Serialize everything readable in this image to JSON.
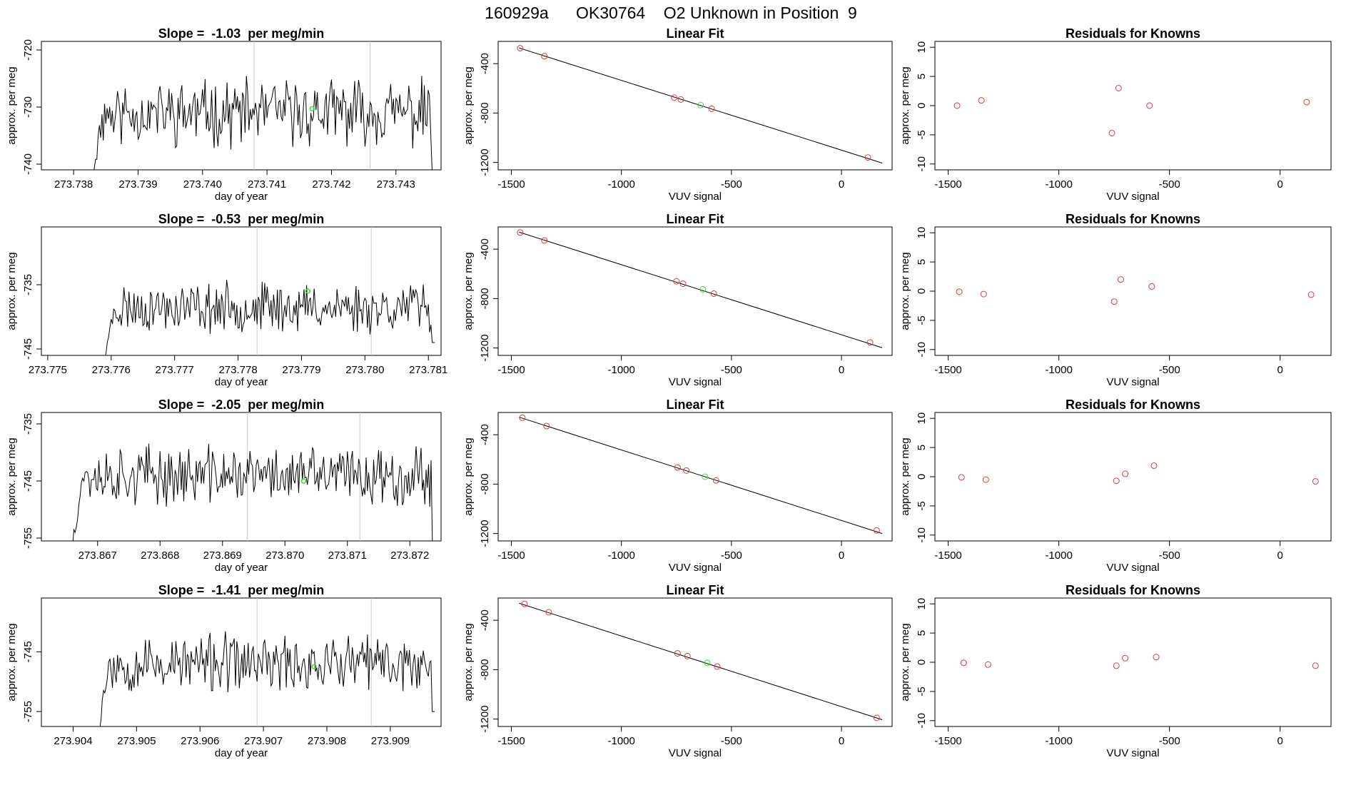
{
  "page_title": "160929a      OK30764    O2 Unknown in Position  9",
  "chart_data": [
    {
      "type": "line",
      "row": 0,
      "panel": "timeseries",
      "title": "Slope =  -1.03  per meg/min",
      "xlabel": "day of year",
      "ylabel": "approx. per meg",
      "xlim": [
        273.7375,
        273.7437
      ],
      "ylim": [
        -741,
        -718.5
      ],
      "xticks": [
        273.738,
        273.739,
        273.74,
        273.741,
        273.742,
        273.743
      ],
      "xtick_labels": [
        "273.738",
        "273.739",
        "273.740",
        "273.741",
        "273.742",
        "273.743"
      ],
      "yticks": [
        -740,
        -730,
        -720
      ],
      "ytick_labels": [
        "-740",
        "-730",
        "-720"
      ],
      "vlines": [
        273.7408,
        273.7426
      ],
      "series_start": 273.7383,
      "series_end": 273.7436,
      "series_step": 2e-05,
      "series_start_value": -741,
      "series_end_value": -741,
      "series_mean": -731,
      "series_amplitude": 4.5,
      "series_seed": 11,
      "highlight": {
        "x": 273.7417,
        "y": -730.3,
        "color": "#33dd33"
      }
    },
    {
      "type": "scatter",
      "row": 0,
      "panel": "fit",
      "title": "Linear Fit",
      "xlabel": "VUV signal",
      "ylabel": "approx. per meg",
      "xlim": [
        -1560,
        230
      ],
      "ylim": [
        -1260,
        -220
      ],
      "xticks": [
        -1500,
        -1000,
        -500,
        0
      ],
      "xtick_labels": [
        "-1500",
        "-1000",
        "-500",
        "0"
      ],
      "yticks": [
        -1200,
        -800,
        -400
      ],
      "ytick_labels": [
        "-1200",
        "-800",
        "-400"
      ],
      "line": {
        "x1": -1465,
        "y1": -273,
        "x2": 185,
        "y2": -1205
      },
      "knowns": [
        {
          "x": -1460,
          "y": -275
        },
        {
          "x": -1350,
          "y": -340
        },
        {
          "x": -760,
          "y": -675
        },
        {
          "x": -730,
          "y": -690
        },
        {
          "x": -590,
          "y": -765
        },
        {
          "x": 120,
          "y": -1160
        }
      ],
      "unknown": {
        "x": -640,
        "y": -735,
        "color": "#33dd33"
      }
    },
    {
      "type": "scatter",
      "row": 0,
      "panel": "residuals",
      "title": "Residuals for Knowns",
      "xlabel": "VUV signal",
      "ylabel": "approx. per meg",
      "xlim": [
        -1560,
        230
      ],
      "ylim": [
        -11,
        11
      ],
      "xticks": [
        -1500,
        -1000,
        -500,
        0
      ],
      "xtick_labels": [
        "-1500",
        "-1000",
        "-500",
        "0"
      ],
      "yticks": [
        -10,
        -5,
        0,
        5,
        10
      ],
      "ytick_labels": [
        "-10",
        "-5",
        "0",
        "5",
        "10"
      ],
      "points": [
        {
          "x": -1460,
          "y": 0
        },
        {
          "x": -1350,
          "y": 0.9
        },
        {
          "x": -760,
          "y": -4.7
        },
        {
          "x": -730,
          "y": 3
        },
        {
          "x": -590,
          "y": 0
        },
        {
          "x": 120,
          "y": 0.6
        }
      ]
    },
    {
      "type": "line",
      "row": 1,
      "panel": "timeseries",
      "title": "Slope =  -0.53  per meg/min",
      "xlabel": "day of year",
      "ylabel": "approx. per meg",
      "xlim": [
        273.7749,
        273.7812
      ],
      "ylim": [
        -746,
        -726
      ],
      "xticks": [
        273.775,
        273.776,
        273.777,
        273.778,
        273.779,
        273.78,
        273.781
      ],
      "xtick_labels": [
        "273.775",
        "273.776",
        "273.777",
        "273.778",
        "273.779",
        "273.780",
        "273.781"
      ],
      "yticks": [
        -745,
        -735
      ],
      "ytick_labels": [
        "-745",
        "-735"
      ],
      "vlines": [
        273.7783,
        273.7801
      ],
      "series_start": 273.7759,
      "series_end": 273.7811,
      "series_step": 2e-05,
      "series_start_value": -746,
      "series_end_value": -744,
      "series_mean": -738.5,
      "series_amplitude": 3,
      "series_seed": 23,
      "highlight": {
        "x": 273.7791,
        "y": -736,
        "color": "#33dd33"
      }
    },
    {
      "type": "scatter",
      "row": 1,
      "panel": "fit",
      "title": "Linear Fit",
      "xlabel": "VUV signal",
      "ylabel": "approx. per meg",
      "xlim": [
        -1560,
        230
      ],
      "ylim": [
        -1260,
        -220
      ],
      "xticks": [
        -1500,
        -1000,
        -500,
        0
      ],
      "xtick_labels": [
        "-1500",
        "-1000",
        "-500",
        "0"
      ],
      "yticks": [
        -1200,
        -800,
        -400
      ],
      "ytick_labels": [
        "-1200",
        "-800",
        "-400"
      ],
      "line": {
        "x1": -1465,
        "y1": -262,
        "x2": 185,
        "y2": -1198
      },
      "knowns": [
        {
          "x": -1460,
          "y": -265
        },
        {
          "x": -1350,
          "y": -330
        },
        {
          "x": -750,
          "y": -660
        },
        {
          "x": -720,
          "y": -680
        },
        {
          "x": -580,
          "y": -760
        },
        {
          "x": 130,
          "y": -1155
        }
      ],
      "unknown": {
        "x": -630,
        "y": -725,
        "color": "#33dd33"
      }
    },
    {
      "type": "scatter",
      "row": 1,
      "panel": "residuals",
      "title": "Residuals for Knowns",
      "xlabel": "VUV signal",
      "ylabel": "approx. per meg",
      "xlim": [
        -1560,
        230
      ],
      "ylim": [
        -11,
        11
      ],
      "xticks": [
        -1500,
        -1000,
        -500,
        0
      ],
      "xtick_labels": [
        "-1500",
        "-1000",
        "-500",
        "0"
      ],
      "yticks": [
        -10,
        -5,
        0,
        5,
        10
      ],
      "ytick_labels": [
        "-10",
        "-5",
        "0",
        "5",
        "10"
      ],
      "points": [
        {
          "x": -1450,
          "y": -0.1
        },
        {
          "x": -1340,
          "y": -0.5
        },
        {
          "x": -750,
          "y": -1.8
        },
        {
          "x": -720,
          "y": 2
        },
        {
          "x": -580,
          "y": 0.8
        },
        {
          "x": 140,
          "y": -0.6
        }
      ]
    },
    {
      "type": "line",
      "row": 2,
      "panel": "timeseries",
      "title": "Slope =  -2.05  per meg/min",
      "xlabel": "day of year",
      "ylabel": "approx. per meg",
      "xlim": [
        273.8661,
        273.8725
      ],
      "ylim": [
        -755.5,
        -733
      ],
      "xticks": [
        273.867,
        273.868,
        273.869,
        273.87,
        273.871,
        273.872
      ],
      "xtick_labels": [
        "273.867",
        "273.868",
        "273.869",
        "273.870",
        "273.871",
        "273.872"
      ],
      "yticks": [
        -755,
        -745,
        -735
      ],
      "ytick_labels": [
        "-755",
        "-745",
        "-735"
      ],
      "vlines": [
        273.8694,
        273.8712
      ],
      "series_start": 273.8666,
      "series_end": 273.8724,
      "series_step": 2e-05,
      "series_start_value": -755.5,
      "series_end_value": -755.5,
      "series_mean": -744,
      "series_amplitude": 4,
      "series_seed": 37,
      "highlight": {
        "x": 273.8703,
        "y": -745,
        "color": "#33dd33"
      }
    },
    {
      "type": "scatter",
      "row": 2,
      "panel": "fit",
      "title": "Linear Fit",
      "xlabel": "VUV signal",
      "ylabel": "approx. per meg",
      "xlim": [
        -1560,
        230
      ],
      "ylim": [
        -1260,
        -220
      ],
      "xticks": [
        -1500,
        -1000,
        -500,
        0
      ],
      "xtick_labels": [
        "-1500",
        "-1000",
        "-500",
        "0"
      ],
      "yticks": [
        -1200,
        -800,
        -400
      ],
      "ytick_labels": [
        "-1200",
        "-800",
        "-400"
      ],
      "line": {
        "x1": -1465,
        "y1": -258,
        "x2": 185,
        "y2": -1200
      },
      "knowns": [
        {
          "x": -1450,
          "y": -262
        },
        {
          "x": -1340,
          "y": -330
        },
        {
          "x": -745,
          "y": -665
        },
        {
          "x": -705,
          "y": -690
        },
        {
          "x": -570,
          "y": -770
        },
        {
          "x": 160,
          "y": -1175
        }
      ],
      "unknown": {
        "x": -620,
        "y": -740,
        "color": "#33dd33"
      }
    },
    {
      "type": "scatter",
      "row": 2,
      "panel": "residuals",
      "title": "Residuals for Knowns",
      "xlabel": "VUV signal",
      "ylabel": "approx. per meg",
      "xlim": [
        -1560,
        230
      ],
      "ylim": [
        -11,
        11
      ],
      "xticks": [
        -1500,
        -1000,
        -500,
        0
      ],
      "xtick_labels": [
        "-1500",
        "-1000",
        "-500",
        "0"
      ],
      "yticks": [
        -10,
        -5,
        0,
        5,
        10
      ],
      "ytick_labels": [
        "-10",
        "-5",
        "0",
        "5",
        "10"
      ],
      "points": [
        {
          "x": -1440,
          "y": -0.1
        },
        {
          "x": -1330,
          "y": -0.5
        },
        {
          "x": -740,
          "y": -0.7
        },
        {
          "x": -700,
          "y": 0.5
        },
        {
          "x": -570,
          "y": 1.9
        },
        {
          "x": 160,
          "y": -0.8
        }
      ]
    },
    {
      "type": "line",
      "row": 3,
      "panel": "timeseries",
      "title": "Slope =  -1.41  per meg/min",
      "xlabel": "day of year",
      "ylabel": "approx. per meg",
      "xlim": [
        273.9035,
        273.9098
      ],
      "ylim": [
        -757.5,
        -736
      ],
      "xticks": [
        273.904,
        273.905,
        273.906,
        273.907,
        273.908,
        273.909
      ],
      "xtick_labels": [
        "273.904",
        "273.905",
        "273.906",
        "273.907",
        "273.908",
        "273.909"
      ],
      "yticks": [
        -755,
        -745
      ],
      "ytick_labels": [
        "-755",
        "-745"
      ],
      "vlines": [
        273.9069,
        273.9087
      ],
      "series_start": 273.9044,
      "series_end": 273.9097,
      "series_step": 2e-05,
      "series_start_value": -757.5,
      "series_end_value": -755,
      "series_mean": -747,
      "series_amplitude": 3.8,
      "series_seed": 53,
      "highlight": {
        "x": 273.9078,
        "y": -747.5,
        "color": "#33dd33"
      }
    },
    {
      "type": "scatter",
      "row": 3,
      "panel": "fit",
      "title": "Linear Fit",
      "xlabel": "VUV signal",
      "ylabel": "approx. per meg",
      "xlim": [
        -1560,
        230
      ],
      "ylim": [
        -1260,
        -220
      ],
      "xticks": [
        -1500,
        -1000,
        -500,
        0
      ],
      "xtick_labels": [
        "-1500",
        "-1000",
        "-500",
        "0"
      ],
      "yticks": [
        -1200,
        -800,
        -400
      ],
      "ytick_labels": [
        "-1200",
        "-800",
        "-400"
      ],
      "line": {
        "x1": -1465,
        "y1": -262,
        "x2": 185,
        "y2": -1205
      },
      "knowns": [
        {
          "x": -1440,
          "y": -268
        },
        {
          "x": -1330,
          "y": -335
        },
        {
          "x": -745,
          "y": -668
        },
        {
          "x": -700,
          "y": -690
        },
        {
          "x": -565,
          "y": -775
        },
        {
          "x": 160,
          "y": -1190
        }
      ],
      "unknown": {
        "x": -610,
        "y": -745,
        "color": "#33dd33"
      }
    },
    {
      "type": "scatter",
      "row": 3,
      "panel": "residuals",
      "title": "Residuals for Knowns",
      "xlabel": "VUV signal",
      "ylabel": "approx. per meg",
      "xlim": [
        -1560,
        230
      ],
      "ylim": [
        -11,
        11
      ],
      "xticks": [
        -1500,
        -1000,
        -500,
        0
      ],
      "xtick_labels": [
        "-1500",
        "-1000",
        "-500",
        "0"
      ],
      "yticks": [
        -10,
        -5,
        0,
        5,
        10
      ],
      "ytick_labels": [
        "-10",
        "-5",
        "0",
        "5",
        "10"
      ],
      "points": [
        {
          "x": -1430,
          "y": -0.1
        },
        {
          "x": -1320,
          "y": -0.4
        },
        {
          "x": -740,
          "y": -0.6
        },
        {
          "x": -700,
          "y": 0.7
        },
        {
          "x": -560,
          "y": 0.9
        },
        {
          "x": 160,
          "y": -0.6
        }
      ]
    }
  ]
}
